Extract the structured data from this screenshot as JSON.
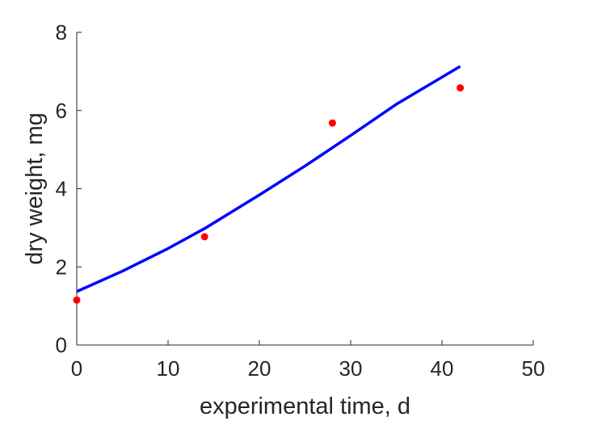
{
  "chart_data": {
    "type": "scatter",
    "title": "",
    "xlabel": "experimental time, d",
    "ylabel": "dry weight, mg",
    "xlim": [
      0,
      50
    ],
    "ylim": [
      0,
      8
    ],
    "xticks": [
      0,
      10,
      20,
      30,
      40,
      50
    ],
    "yticks": [
      0,
      2,
      4,
      6,
      8
    ],
    "grid": false,
    "box": false,
    "series": [
      {
        "kind": "points",
        "color": "#ff0000",
        "x": [
          0,
          14,
          28,
          42
        ],
        "y": [
          1.15,
          2.77,
          5.68,
          6.58
        ]
      },
      {
        "kind": "line",
        "color": "#0000ff",
        "x": [
          0,
          5,
          10,
          14,
          20,
          25,
          30,
          35,
          42
        ],
        "y": [
          1.37,
          1.89,
          2.47,
          2.98,
          3.84,
          4.58,
          5.36,
          6.16,
          7.13
        ]
      }
    ]
  }
}
